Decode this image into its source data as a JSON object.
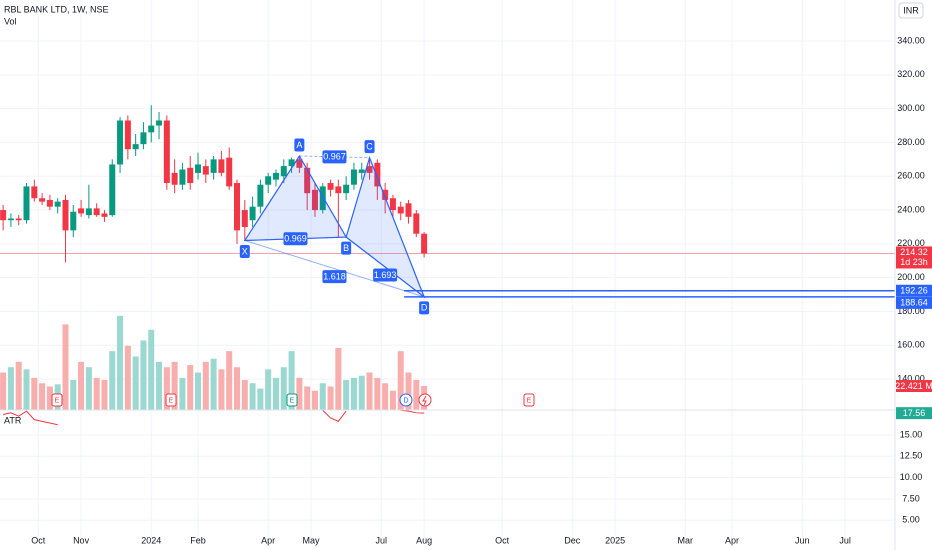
{
  "chart_data": {
    "type": "candlestick",
    "title": "RBL BANK LTD, 1W, NSE",
    "currency": "INR",
    "up_color": "#089981",
    "down_color": "#f23645",
    "candles": [
      [
        240,
        243,
        228,
        234
      ],
      [
        234,
        238,
        230,
        235
      ],
      [
        235,
        237,
        231,
        234
      ],
      [
        234,
        256,
        232,
        254
      ],
      [
        254,
        258,
        245,
        247
      ],
      [
        247,
        250,
        243,
        245
      ],
      [
        246,
        249,
        240,
        242
      ],
      [
        242,
        247,
        238,
        245
      ],
      [
        246,
        249,
        209,
        228
      ],
      [
        228,
        243,
        224,
        239
      ],
      [
        241,
        246,
        236,
        238
      ],
      [
        237,
        255,
        235,
        241
      ],
      [
        241,
        244,
        236,
        237
      ],
      [
        238,
        240,
        233,
        236
      ],
      [
        237,
        270,
        236,
        267
      ],
      [
        267,
        295,
        262,
        293
      ],
      [
        293,
        296,
        270,
        276
      ],
      [
        276,
        285,
        272,
        279
      ],
      [
        279,
        292,
        276,
        286
      ],
      [
        286,
        302,
        280,
        290
      ],
      [
        290,
        298,
        282,
        293
      ],
      [
        293,
        296,
        252,
        256
      ],
      [
        262,
        270,
        250,
        255
      ],
      [
        255,
        268,
        252,
        264
      ],
      [
        265,
        272,
        252,
        256
      ],
      [
        262,
        274,
        258,
        267
      ],
      [
        266,
        270,
        256,
        261
      ],
      [
        262,
        272,
        258,
        270
      ],
      [
        270,
        275,
        260,
        262
      ],
      [
        271,
        277,
        252,
        254
      ],
      [
        256,
        258,
        220,
        228
      ],
      [
        240,
        246,
        222,
        230
      ],
      [
        234,
        248,
        230,
        242
      ],
      [
        242,
        258,
        238,
        255
      ],
      [
        255,
        262,
        250,
        260
      ],
      [
        258,
        264,
        254,
        262
      ],
      [
        260,
        270,
        256,
        266
      ],
      [
        266,
        271,
        262,
        270
      ],
      [
        270,
        272,
        262,
        265
      ],
      [
        265,
        268,
        240,
        250
      ],
      [
        252,
        256,
        236,
        240
      ],
      [
        240,
        256,
        238,
        254
      ],
      [
        256,
        258,
        248,
        252
      ],
      [
        254,
        258,
        224,
        250
      ],
      [
        250,
        260,
        246,
        255
      ],
      [
        255,
        268,
        252,
        264
      ],
      [
        262,
        268,
        258,
        264
      ],
      [
        266,
        271,
        258,
        262
      ],
      [
        268,
        270,
        246,
        254
      ],
      [
        252,
        256,
        238,
        246
      ],
      [
        247,
        249,
        236,
        240
      ],
      [
        242,
        245,
        234,
        238
      ],
      [
        244,
        246,
        232,
        236
      ],
      [
        238,
        240,
        224,
        226
      ],
      [
        226,
        227,
        212,
        214.32
      ]
    ],
    "last_price_countdown": "1d 23h",
    "ylim": [
      121.7,
      364.3
    ],
    "yticks": [
      {
        "value": 340,
        "label": "340.00"
      },
      {
        "value": 320,
        "label": "320.00"
      },
      {
        "value": 300,
        "label": "300.00"
      },
      {
        "value": 280,
        "label": "280.00"
      },
      {
        "value": 260,
        "label": "260.00"
      },
      {
        "value": 240,
        "label": "240.00"
      },
      {
        "value": 220,
        "label": "220.00"
      },
      {
        "value": 200,
        "label": "200.00"
      },
      {
        "value": 180,
        "label": "180.00"
      },
      {
        "value": 160,
        "label": "160.00"
      },
      {
        "value": 140,
        "label": "140.00"
      }
    ],
    "xlim": [
      -0.4,
      114.4
    ],
    "xticks": [
      {
        "value": 4.5,
        "label": "Oct"
      },
      {
        "value": 10,
        "label": "Nov"
      },
      {
        "value": 19,
        "label": "2024"
      },
      {
        "value": 25,
        "label": "Feb"
      },
      {
        "value": 34,
        "label": "Apr"
      },
      {
        "value": 39.5,
        "label": "May"
      },
      {
        "value": 48.5,
        "label": "Jul"
      },
      {
        "value": 54,
        "label": "Aug"
      },
      {
        "value": 64,
        "label": "Oct"
      },
      {
        "value": 73,
        "label": "Dec"
      },
      {
        "value": 78.5,
        "label": "2025"
      },
      {
        "value": 87.5,
        "label": "Mar"
      },
      {
        "value": 93.5,
        "label": "Apr"
      },
      {
        "value": 102.5,
        "label": "Jun"
      },
      {
        "value": 108,
        "label": "Jul"
      }
    ],
    "volume": {
      "name": "Vol",
      "up_color": "#9ad8d1",
      "down_color": "#f8aeac",
      "lim": [
        0,
        100
      ],
      "values": [
        35,
        40,
        45,
        38,
        30,
        25,
        22,
        24,
        80,
        28,
        45,
        40,
        30,
        28,
        55,
        88,
        60,
        50,
        65,
        75,
        45,
        40,
        45,
        30,
        42,
        35,
        45,
        48,
        38,
        55,
        40,
        28,
        25,
        20,
        38,
        30,
        40,
        55,
        30,
        22,
        18,
        25,
        22,
        58,
        28,
        30,
        32,
        35,
        30,
        25,
        18,
        55,
        35,
        28,
        22.421
      ],
      "last_label": "22.421 M"
    },
    "atr": {
      "name": "ATR",
      "color": "#f23645",
      "ylim": [
        2.68,
        17.93
      ],
      "yticks": [
        {
          "value": 15,
          "label": "15.00"
        },
        {
          "value": 12.5,
          "label": "12.50"
        },
        {
          "value": 10,
          "label": "10.00"
        },
        {
          "value": 7.5,
          "label": "7.50"
        },
        {
          "value": 5,
          "label": "5.00"
        }
      ],
      "values": [
        17.4,
        17.6,
        17.2,
        17.8,
        16.8,
        16.6,
        16.4,
        16.2,
        null,
        null,
        null,
        null,
        null,
        null,
        null,
        null,
        null,
        null,
        null,
        null,
        null,
        null,
        null,
        null,
        null,
        null,
        null,
        null,
        null,
        null,
        null,
        null,
        null,
        null,
        null,
        null,
        null,
        null,
        null,
        null,
        null,
        17.9,
        17.0,
        16.6,
        17.8,
        null,
        null,
        null,
        null,
        null,
        null,
        17.9,
        17.8,
        17.6,
        17.56
      ]
    },
    "pattern": {
      "color": "#2962ff",
      "points": [
        {
          "label": "X",
          "x": 31,
          "y": 222
        },
        {
          "label": "A",
          "x": 38,
          "y": 272
        },
        {
          "label": "B",
          "x": 44,
          "y": 224
        },
        {
          "label": "C",
          "x": 47,
          "y": 271
        },
        {
          "label": "D",
          "x": 54,
          "y": 188.64
        }
      ],
      "ratios": [
        0.967,
        0.969,
        1.618,
        1.693
      ]
    },
    "levels": [
      192.26,
      188.64
    ],
    "events": [
      "E",
      "E",
      "E",
      "D",
      "E"
    ]
  }
}
